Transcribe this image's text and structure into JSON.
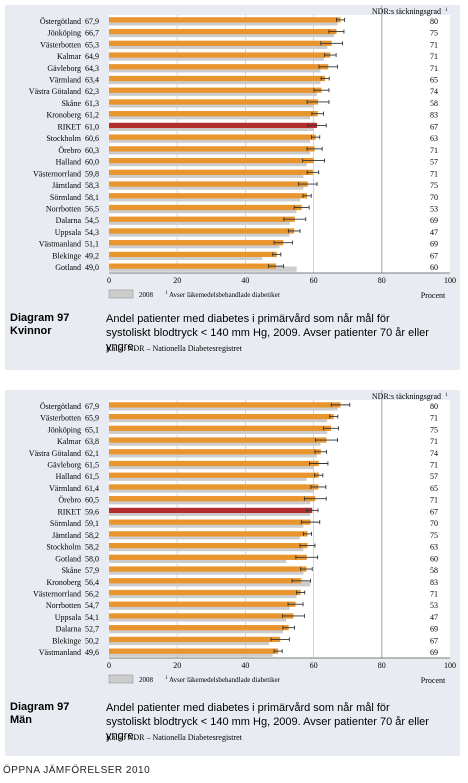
{
  "chart_data": [
    {
      "type": "bar",
      "right_header": "NDR:s täckningsgrad",
      "header_sup": "1",
      "x_ticks": [
        "0",
        "20",
        "40",
        "60",
        "80",
        "100"
      ],
      "x_unit": "Procent",
      "xlim": [
        0,
        100
      ],
      "legend_2008": "2008",
      "legend_note": "Avser läkemedelsbehandlade diabetiker",
      "legend_sup": "1",
      "colors": {
        "bar": "#e8952e",
        "riket": "#b42d2d",
        "ref_2008": "#cccccc"
      },
      "rows": [
        {
          "label": "Östergötland",
          "value_label": "67,9",
          "value": 67.9,
          "coverage": "80",
          "ref_2008": 67
        },
        {
          "label": "Jönköping",
          "value_label": "66,7",
          "value": 66.7,
          "coverage": "75",
          "ref_2008": 66
        },
        {
          "label": "Västerbotten",
          "value_label": "65,3",
          "value": 65.3,
          "coverage": "71",
          "ref_2008": 64
        },
        {
          "label": "Kalmar",
          "value_label": "64,9",
          "value": 64.9,
          "coverage": "71",
          "ref_2008": 63
        },
        {
          "label": "Gävleborg",
          "value_label": "64,3",
          "value": 64.3,
          "coverage": "71",
          "ref_2008": 62
        },
        {
          "label": "Värmland",
          "value_label": "63,4",
          "value": 63.4,
          "coverage": "65",
          "ref_2008": 62
        },
        {
          "label": "Västra Götaland",
          "value_label": "62,3",
          "value": 62.3,
          "coverage": "74",
          "ref_2008": 61
        },
        {
          "label": "Skåne",
          "value_label": "61,3",
          "value": 61.3,
          "coverage": "58",
          "ref_2008": 60
        },
        {
          "label": "Kronoberg",
          "value_label": "61,2",
          "value": 61.2,
          "coverage": "83",
          "ref_2008": 59
        },
        {
          "label": "RIKET",
          "value_label": "61,0",
          "value": 61.0,
          "coverage": "67",
          "ref_2008": 60,
          "total": true
        },
        {
          "label": "Stockholm",
          "value_label": "60,6",
          "value": 60.6,
          "coverage": "63",
          "ref_2008": 59
        },
        {
          "label": "Örebro",
          "value_label": "60,3",
          "value": 60.3,
          "coverage": "71",
          "ref_2008": 59
        },
        {
          "label": "Halland",
          "value_label": "60,0",
          "value": 60.0,
          "coverage": "57",
          "ref_2008": 58
        },
        {
          "label": "Västernorrland",
          "value_label": "59,8",
          "value": 59.8,
          "coverage": "71",
          "ref_2008": 57
        },
        {
          "label": "Jämtland",
          "value_label": "58,3",
          "value": 58.3,
          "coverage": "75",
          "ref_2008": 57
        },
        {
          "label": "Sörmland",
          "value_label": "58,1",
          "value": 58.1,
          "coverage": "70",
          "ref_2008": 56
        },
        {
          "label": "Norrbotten",
          "value_label": "56,5",
          "value": 56.5,
          "coverage": "53",
          "ref_2008": 55
        },
        {
          "label": "Dalarna",
          "value_label": "54,5",
          "value": 54.5,
          "coverage": "69",
          "ref_2008": 53
        },
        {
          "label": "Uppsala",
          "value_label": "54,3",
          "value": 54.3,
          "coverage": "47",
          "ref_2008": 53
        },
        {
          "label": "Västmanland",
          "value_label": "51,1",
          "value": 51.1,
          "coverage": "69",
          "ref_2008": 50
        },
        {
          "label": "Blekinge",
          "value_label": "49,2",
          "value": 49.2,
          "coverage": "67",
          "ref_2008": 45
        },
        {
          "label": "Gotland",
          "value_label": "49,0",
          "value": 49.0,
          "coverage": "60",
          "ref_2008": 55
        }
      ]
    },
    {
      "type": "bar",
      "right_header": "NDR:s täckningsgrad",
      "header_sup": "1",
      "x_ticks": [
        "0",
        "20",
        "40",
        "60",
        "80",
        "100"
      ],
      "x_unit": "Procent",
      "xlim": [
        0,
        100
      ],
      "legend_2008": "2008",
      "legend_note": "Avser läkemedelsbehandlade diabetiker",
      "legend_sup": "1",
      "colors": {
        "bar": "#e8952e",
        "riket": "#b42d2d",
        "ref_2008": "#cccccc"
      },
      "rows": [
        {
          "label": "Östergötland",
          "value_label": "67,9",
          "value": 67.9,
          "coverage": "80",
          "ref_2008": 67
        },
        {
          "label": "Västerbotten",
          "value_label": "65,9",
          "value": 65.9,
          "coverage": "71",
          "ref_2008": 64
        },
        {
          "label": "Jönköping",
          "value_label": "65,1",
          "value": 65.1,
          "coverage": "75",
          "ref_2008": 64
        },
        {
          "label": "Kalmar",
          "value_label": "63,8",
          "value": 63.8,
          "coverage": "71",
          "ref_2008": 62
        },
        {
          "label": "Västra Götaland",
          "value_label": "62,1",
          "value": 62.1,
          "coverage": "74",
          "ref_2008": 61
        },
        {
          "label": "Gävleborg",
          "value_label": "61,5",
          "value": 61.5,
          "coverage": "71",
          "ref_2008": 60
        },
        {
          "label": "Halland",
          "value_label": "61,5",
          "value": 61.5,
          "coverage": "57",
          "ref_2008": 58
        },
        {
          "label": "Värmland",
          "value_label": "61,4",
          "value": 61.4,
          "coverage": "65",
          "ref_2008": 60
        },
        {
          "label": "Örebro",
          "value_label": "60,5",
          "value": 60.5,
          "coverage": "71",
          "ref_2008": 59
        },
        {
          "label": "RIKET",
          "value_label": "59,6",
          "value": 59.6,
          "coverage": "67",
          "ref_2008": 59,
          "total": true
        },
        {
          "label": "Sörmland",
          "value_label": "59,1",
          "value": 59.1,
          "coverage": "70",
          "ref_2008": 57
        },
        {
          "label": "Jämtland",
          "value_label": "58,2",
          "value": 58.2,
          "coverage": "75",
          "ref_2008": 56
        },
        {
          "label": "Stockholm",
          "value_label": "58,2",
          "value": 58.2,
          "coverage": "63",
          "ref_2008": 57
        },
        {
          "label": "Gotland",
          "value_label": "58,0",
          "value": 58.0,
          "coverage": "60",
          "ref_2008": 52
        },
        {
          "label": "Skåne",
          "value_label": "57,9",
          "value": 57.9,
          "coverage": "58",
          "ref_2008": 57
        },
        {
          "label": "Kronoberg",
          "value_label": "56,4",
          "value": 56.4,
          "coverage": "83",
          "ref_2008": 59
        },
        {
          "label": "Västernorrland",
          "value_label": "56,2",
          "value": 56.2,
          "coverage": "71",
          "ref_2008": 55
        },
        {
          "label": "Norrbotten",
          "value_label": "54,7",
          "value": 54.7,
          "coverage": "53",
          "ref_2008": 53
        },
        {
          "label": "Uppsala",
          "value_label": "54,1",
          "value": 54.1,
          "coverage": "47",
          "ref_2008": 52
        },
        {
          "label": "Dalarna",
          "value_label": "52,7",
          "value": 52.7,
          "coverage": "69",
          "ref_2008": 51
        },
        {
          "label": "Blekinge",
          "value_label": "50,2",
          "value": 50.2,
          "coverage": "67",
          "ref_2008": 47
        },
        {
          "label": "Västmanland",
          "value_label": "49,6",
          "value": 49.6,
          "coverage": "69",
          "ref_2008": 48
        }
      ]
    }
  ],
  "captions": [
    {
      "number": "Diagram 97",
      "group": "Kvinnor",
      "text": "Andel patienter med diabetes i primärvård som når mål för systoliskt blodtryck < 140 mm Hg, 2009. Avser patienter 70 år eller yngre.",
      "source": "Källa: NDR – Nationella Diabetesregistret"
    },
    {
      "number": "Diagram 97",
      "group": "Män",
      "text": "Andel patienter med diabetes i primärvård som når mål för systoliskt blodtryck < 140 mm Hg, 2009. Avser patienter 70 år eller yngre.",
      "source": "Källa: NDR – Nationella Diabetesregistret"
    }
  ],
  "footer": "ÖPPNA JÄMFÖRELSER 2010"
}
